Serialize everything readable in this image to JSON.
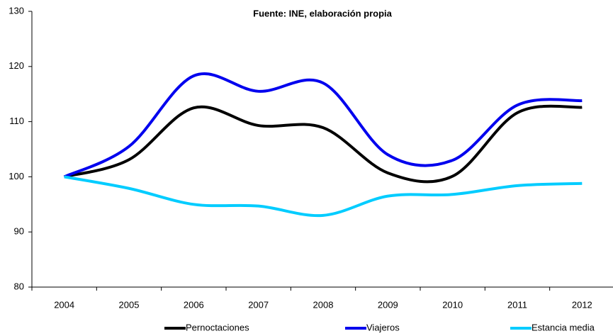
{
  "chart_data": {
    "type": "line",
    "title": "Fuente: INE, elaboración propia",
    "categories": [
      "2004",
      "2005",
      "2006",
      "2007",
      "2008",
      "2009",
      "2010",
      "2011",
      "2012"
    ],
    "series": [
      {
        "name": "Pernoctaciones",
        "color": "#000000",
        "values": [
          100,
          103.1,
          112.5,
          109.3,
          108.9,
          100.7,
          100.1,
          111.6,
          112.6
        ]
      },
      {
        "name": "Viajeros",
        "color": "#0000ee",
        "values": [
          100,
          105.5,
          118.3,
          115.5,
          117,
          104,
          103,
          113,
          113.8
        ]
      },
      {
        "name": "Estancia media",
        "color": "#00ccff",
        "values": [
          100,
          97.9,
          95,
          94.7,
          93,
          96.5,
          96.8,
          98.4,
          98.8
        ]
      }
    ],
    "ylim": [
      80,
      130
    ],
    "yticks": [
      80,
      90,
      100,
      110,
      120,
      130
    ],
    "smooth": true
  }
}
